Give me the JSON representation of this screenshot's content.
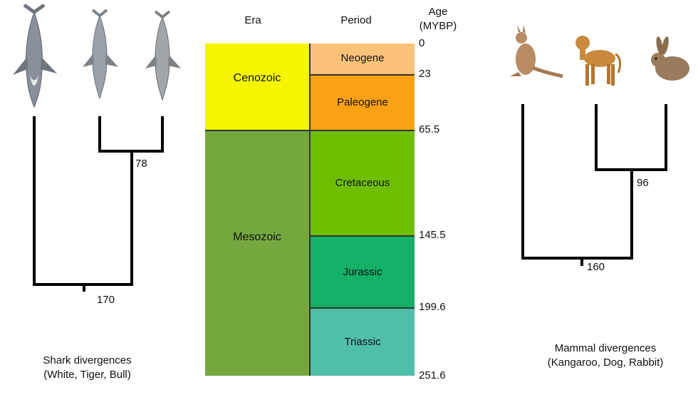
{
  "timescale": {
    "headers": {
      "era": "Era",
      "period": "Period",
      "age_line1": "Age",
      "age_line2": "(MYBP)"
    },
    "eras": [
      {
        "name": "Cenozoic",
        "start": 0,
        "end": 65.5,
        "color": "#f5f500"
      },
      {
        "name": "Mesozoic",
        "start": 65.5,
        "end": 251.6,
        "color": "#74a83e"
      }
    ],
    "periods": [
      {
        "name": "Neogene",
        "start": 0,
        "end": 23,
        "color": "#fdc27a"
      },
      {
        "name": "Paleogene",
        "start": 23,
        "end": 65.5,
        "color": "#fca113"
      },
      {
        "name": "Cretaceous",
        "start": 65.5,
        "end": 145.5,
        "color": "#6fbf00"
      },
      {
        "name": "Jurassic",
        "start": 145.5,
        "end": 199.6,
        "color": "#14b067"
      },
      {
        "name": "Triassic",
        "start": 199.6,
        "end": 251.6,
        "color": "#4fbfa8"
      }
    ],
    "ages": [
      "0",
      "23",
      "65.5",
      "145.5",
      "199.6",
      "251.6"
    ]
  },
  "sharks": {
    "icons": [
      "great-white-shark-icon",
      "tiger-shark-icon",
      "bull-shark-icon"
    ],
    "inner_node_label": "78",
    "root_node_label": "170",
    "caption_line1": "Shark divergences",
    "caption_line2": "(White, Tiger, Bull)"
  },
  "mammals": {
    "icons": [
      "kangaroo-icon",
      "dog-icon",
      "rabbit-icon"
    ],
    "inner_node_label": "96",
    "root_node_label": "160",
    "caption_line1": "Mammal divergences",
    "caption_line2": "(Kangaroo, Dog, Rabbit)"
  }
}
